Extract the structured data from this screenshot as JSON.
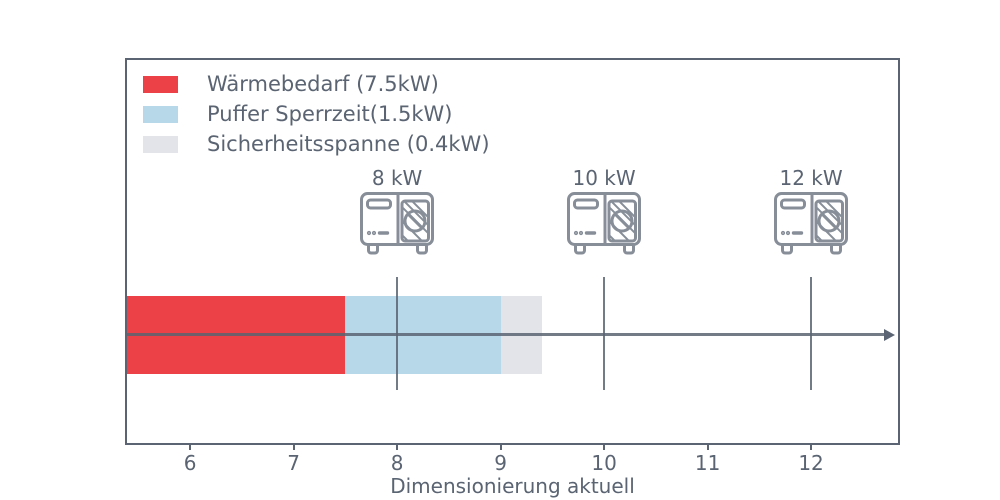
{
  "chart_data": {
    "type": "bar",
    "subtype": "horizontal-stacked-single-bar",
    "title": "",
    "xlabel": "Dimensionierung aktuell",
    "ylabel": "",
    "x_ticks": [
      6,
      7,
      8,
      9,
      10,
      11,
      12
    ],
    "xlim": [
      5.39,
      12.84
    ],
    "grid": false,
    "legend_position": "top-left",
    "bar_start": 5.39,
    "segments": [
      {
        "name": "waermebedarf",
        "legend_label": "Wärmebedarf (7.5kW)",
        "value_kw": 7.5,
        "start": 5.39,
        "end": 7.5,
        "color": "#ec4146"
      },
      {
        "name": "puffer-sperrzeit",
        "legend_label": "Puffer Sperrzeit(1.5kW)",
        "value_kw": 1.5,
        "start": 7.5,
        "end": 9.0,
        "color": "#b6d8e9"
      },
      {
        "name": "sicherheitsspanne",
        "legend_label": "Sicherheitsspanne (0.4kW)",
        "value_kw": 0.4,
        "start": 9.0,
        "end": 9.4,
        "color": "#e2e4e9"
      }
    ],
    "pump_markers": [
      {
        "label": "8 kW",
        "power_kw": 8,
        "x": 8,
        "icon": "heat-pump-icon"
      },
      {
        "label": "10 kW",
        "power_kw": 10,
        "x": 10,
        "icon": "heat-pump-icon"
      },
      {
        "label": "12 kW",
        "power_kw": 12,
        "x": 12,
        "icon": "heat-pump-icon"
      }
    ]
  },
  "colors": {
    "background": "#ffffff",
    "axis_frame": "#5a6472",
    "text": "#5a6472",
    "icon_stroke": "#878e98",
    "arrow_line": "#5a6472"
  }
}
